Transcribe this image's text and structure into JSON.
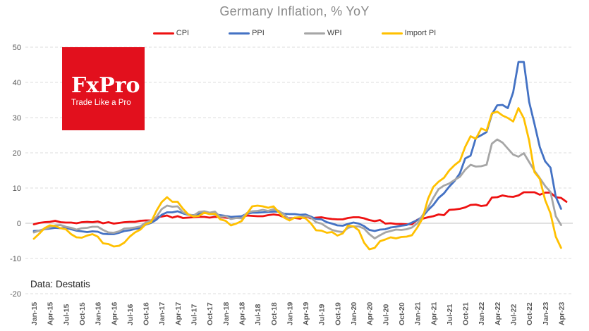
{
  "title": "Germany Inflation, % YoY",
  "source_note": "Data: Destatis",
  "logo": {
    "name": "FxPro",
    "tagline": "Trade Like a Pro",
    "bg_color": "#e2101d"
  },
  "chart_data": {
    "type": "line",
    "title": "Germany Inflation, % YoY",
    "xlabel": "",
    "ylabel": "",
    "ylim": [
      -20,
      50
    ],
    "y_ticks": [
      50,
      40,
      30,
      20,
      10,
      0,
      -10,
      -20
    ],
    "grid": "horizontal-dashed",
    "legend_position": "top",
    "x_frequency": "monthly",
    "months_per_tick": 3,
    "x_tick_labels": [
      "Jan-15",
      "Apr-15",
      "Jul-15",
      "Oct-15",
      "Jan-16",
      "Apr-16",
      "Jul-16",
      "Oct-16",
      "Jan-17",
      "Apr-17",
      "Jul-17",
      "Oct-17",
      "Jan-18",
      "Apr-18",
      "Jul-18",
      "Oct-18",
      "Jan-19",
      "Apr-19",
      "Jul-19",
      "Oct-19",
      "Jan-20",
      "Apr-20",
      "Jul-20",
      "Oct-20",
      "Jan-21",
      "Apr-21",
      "Jul-21",
      "Oct-21",
      "Jan-22",
      "Apr-22",
      "Jul-22",
      "Oct-22",
      "Jan-23",
      "Apr-23"
    ],
    "series": [
      {
        "name": "CPI",
        "color": "#ee1111",
        "values": [
          -0.3,
          0.1,
          0.3,
          0.4,
          0.7,
          0.3,
          0.2,
          0.2,
          0.0,
          0.3,
          0.4,
          0.3,
          0.5,
          0.0,
          0.3,
          -0.1,
          0.1,
          0.3,
          0.4,
          0.4,
          0.7,
          0.8,
          0.8,
          1.7,
          1.9,
          2.2,
          1.6,
          2.0,
          1.5,
          1.6,
          1.7,
          1.8,
          1.8,
          1.6,
          1.8,
          1.7,
          1.6,
          1.4,
          1.6,
          1.6,
          2.2,
          2.1,
          2.0,
          2.0,
          2.3,
          2.5,
          2.3,
          1.7,
          1.4,
          1.5,
          1.3,
          2.0,
          1.4,
          1.6,
          1.7,
          1.4,
          1.2,
          1.1,
          1.1,
          1.5,
          1.7,
          1.7,
          1.4,
          0.9,
          0.6,
          0.9,
          -0.1,
          0.0,
          -0.2,
          -0.2,
          -0.3,
          -0.3,
          1.0,
          1.3,
          1.7,
          2.0,
          2.5,
          2.3,
          3.8,
          3.9,
          4.1,
          4.5,
          5.2,
          5.3,
          4.9,
          5.1,
          7.3,
          7.4,
          7.9,
          7.6,
          7.5,
          7.9,
          8.8,
          8.8,
          8.8,
          8.1,
          8.7,
          8.7,
          7.4,
          7.2,
          6.1
        ]
      },
      {
        "name": "PPI",
        "color": "#4472c4",
        "values": [
          -2.2,
          -2.1,
          -1.7,
          -1.5,
          -1.3,
          -1.4,
          -1.3,
          -1.7,
          -2.1,
          -2.3,
          -2.5,
          -2.3,
          -2.4,
          -3.0,
          -3.1,
          -3.1,
          -2.7,
          -2.2,
          -2.0,
          -1.6,
          -1.4,
          -0.4,
          0.1,
          1.0,
          2.4,
          3.1,
          3.1,
          3.4,
          2.8,
          2.4,
          2.3,
          2.6,
          3.1,
          2.7,
          2.5,
          2.3,
          2.1,
          1.8,
          1.9,
          2.0,
          2.7,
          3.0,
          3.0,
          3.1,
          3.2,
          3.3,
          3.3,
          2.7,
          2.6,
          2.6,
          2.4,
          2.5,
          1.9,
          1.2,
          1.1,
          0.3,
          -0.1,
          -0.6,
          -0.7,
          -0.2,
          0.2,
          -0.1,
          -0.8,
          -1.9,
          -2.2,
          -1.8,
          -1.7,
          -1.2,
          -1.0,
          -0.7,
          -0.5,
          0.2,
          0.9,
          1.9,
          3.7,
          5.2,
          7.2,
          8.5,
          10.4,
          12.0,
          14.2,
          18.4,
          19.2,
          24.2,
          25.0,
          25.9,
          30.9,
          33.5,
          33.6,
          32.7,
          37.2,
          45.8,
          45.8,
          34.5,
          28.2,
          21.6,
          17.6,
          15.8,
          7.5,
          4.1
        ]
      },
      {
        "name": "WPI",
        "color": "#a6a6a6",
        "values": [
          -2.6,
          -2.1,
          -1.6,
          -1.2,
          -0.6,
          -0.5,
          -1.0,
          -1.3,
          -1.8,
          -1.4,
          -1.3,
          -1.0,
          -1.0,
          -1.9,
          -2.6,
          -2.7,
          -2.3,
          -1.5,
          -1.4,
          -1.2,
          -0.9,
          0.2,
          0.8,
          1.8,
          4.0,
          5.0,
          4.7,
          4.8,
          3.1,
          2.5,
          2.2,
          3.2,
          3.4,
          3.0,
          3.3,
          1.8,
          2.0,
          1.2,
          1.5,
          1.4,
          2.9,
          3.4,
          3.5,
          3.8,
          3.5,
          4.0,
          3.5,
          2.5,
          1.1,
          1.6,
          1.7,
          2.1,
          1.6,
          0.3,
          -0.1,
          -1.1,
          -1.9,
          -2.3,
          -2.5,
          -1.3,
          -0.9,
          -0.9,
          -1.5,
          -3.1,
          -4.3,
          -3.4,
          -2.6,
          -2.2,
          -1.8,
          -1.9,
          -1.7,
          -1.2,
          0.0,
          2.3,
          4.4,
          7.2,
          9.7,
          10.7,
          11.3,
          12.3,
          13.2,
          15.2,
          16.6,
          16.1,
          16.2,
          16.6,
          22.6,
          23.8,
          22.9,
          21.2,
          19.5,
          18.9,
          19.9,
          17.4,
          14.9,
          12.8,
          10.6,
          8.9,
          2.0,
          -0.5
        ]
      },
      {
        "name": "Import PI",
        "color": "#ffc000",
        "values": [
          -4.4,
          -3.0,
          -1.4,
          -0.6,
          -0.8,
          -1.4,
          -1.7,
          -3.1,
          -4.0,
          -4.1,
          -3.5,
          -3.1,
          -3.8,
          -5.7,
          -5.9,
          -6.6,
          -6.4,
          -5.5,
          -3.8,
          -2.6,
          -1.8,
          -0.3,
          0.3,
          3.5,
          6.0,
          7.4,
          6.1,
          6.1,
          4.1,
          2.5,
          1.9,
          2.1,
          3.0,
          2.6,
          2.7,
          1.1,
          0.7,
          -0.6,
          -0.1,
          0.6,
          2.7,
          4.8,
          5.0,
          4.8,
          4.4,
          4.8,
          3.1,
          1.6,
          0.8,
          1.6,
          1.7,
          1.4,
          0.0,
          -2.0,
          -2.1,
          -2.7,
          -2.5,
          -3.5,
          -2.9,
          -0.7,
          -0.9,
          -2.0,
          -5.5,
          -7.4,
          -7.0,
          -5.1,
          -4.6,
          -4.0,
          -4.3,
          -3.9,
          -3.8,
          -3.4,
          -1.2,
          1.4,
          6.9,
          10.3,
          11.8,
          12.9,
          15.0,
          16.5,
          17.7,
          21.7,
          24.7,
          24.0,
          26.9,
          26.3,
          31.2,
          31.7,
          30.6,
          29.9,
          28.9,
          32.7,
          29.8,
          23.5,
          14.5,
          12.6,
          6.6,
          2.8,
          -3.8,
          -7.0
        ]
      }
    ]
  }
}
